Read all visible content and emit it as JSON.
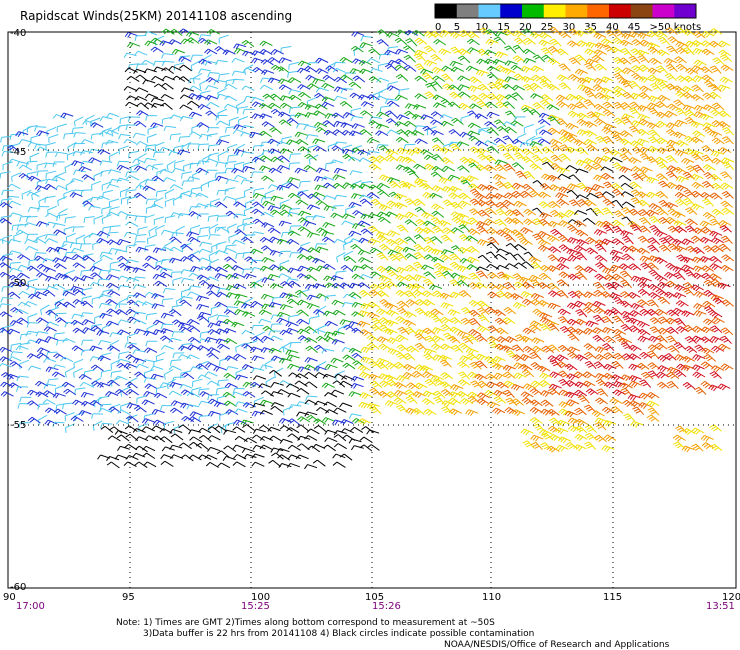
{
  "title": "Rapidscat Winds(25KM) 20141108 ascending",
  "legend": {
    "labels": [
      "0",
      "5",
      "10",
      "15",
      "20",
      "25",
      "30",
      "35",
      "40",
      "45",
      ">50 knots"
    ],
    "colors": [
      "#000000",
      "#7f7f7f",
      "#66ccff",
      "#0000cc",
      "#00bb00",
      "#ffee00",
      "#ffaa00",
      "#ff6600",
      "#cc0000",
      "#8b4513",
      "#cc00cc",
      "#7000d0"
    ]
  },
  "map": {
    "lon_labels": [
      "90",
      "95",
      "100",
      "105",
      "110",
      "115",
      "120"
    ],
    "lat_labels": [
      "-40",
      "-45",
      "-50",
      "-55",
      "-60"
    ],
    "times": [
      "17:00",
      "15:25",
      "15:26",
      "13:51"
    ]
  },
  "notes": {
    "line1": "Note: 1) Times are GMT 2)Times along bottom correspond to measurement at ~50S",
    "line2": "3)Data buffer is 22 hrs from 20141108 4) Black circles indicate possible contamination",
    "line3": "NOAA/NESDIS/Office of Research and Applications"
  }
}
